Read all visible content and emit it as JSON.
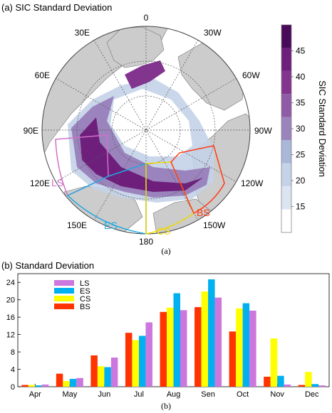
{
  "panel_a": {
    "title": "(a) SIC Standard Deviation",
    "caption": "(a)",
    "lon_labels": [
      "0",
      "30W",
      "60W",
      "90W",
      "120W",
      "150W",
      "180",
      "150E",
      "120E",
      "90E",
      "60E",
      "30E"
    ],
    "colorbar": {
      "label": "SIC Standard Deviation",
      "ticks": [
        "15",
        "20",
        "25",
        "30",
        "35",
        "40",
        "45"
      ],
      "colors": [
        "#ffffff",
        "#dbe5f1",
        "#c4d3e8",
        "#a9b8d9",
        "#9b84bd",
        "#8f5aa6",
        "#82348f",
        "#6e1f7c",
        "#4a0a5a"
      ]
    },
    "regions": [
      {
        "name": "LS",
        "color": "#d070c8"
      },
      {
        "name": "ES",
        "color": "#1fa8e0"
      },
      {
        "name": "CS",
        "color": "#f0d800"
      },
      {
        "name": "BS",
        "color": "#ff3c14"
      }
    ]
  },
  "chart_data": {
    "type": "bar",
    "title": "(b) Standard Deviation",
    "caption": "(b)",
    "xlabel": "",
    "ylabel": "",
    "ylim": [
      0,
      26
    ],
    "yticks": [
      0,
      4,
      8,
      12,
      16,
      20,
      24
    ],
    "grid": false,
    "legend_position": "top-left",
    "categories": [
      "Apr",
      "May",
      "Jun",
      "Jul",
      "Aug",
      "Sen",
      "Oct",
      "Nov",
      "Dec"
    ],
    "series": [
      {
        "name": "BS",
        "color": "#ff3300",
        "values": [
          0.4,
          3.0,
          7.2,
          12.4,
          17.2,
          18.3,
          12.7,
          2.3,
          0.4
        ]
      },
      {
        "name": "CS",
        "color": "#ffff00",
        "values": [
          0.4,
          1.3,
          4.7,
          10.7,
          18.2,
          21.9,
          18.0,
          11.1,
          3.4
        ]
      },
      {
        "name": "ES",
        "color": "#00b0f0",
        "values": [
          0.3,
          1.8,
          4.5,
          11.7,
          21.5,
          24.7,
          19.2,
          2.5,
          0.6
        ]
      },
      {
        "name": "LS",
        "color": "#cc77dd",
        "values": [
          0.5,
          2.0,
          6.7,
          14.8,
          17.6,
          20.5,
          17.5,
          0.5,
          0.3
        ]
      }
    ],
    "legend_order": [
      "LS",
      "ES",
      "CS",
      "BS"
    ]
  }
}
